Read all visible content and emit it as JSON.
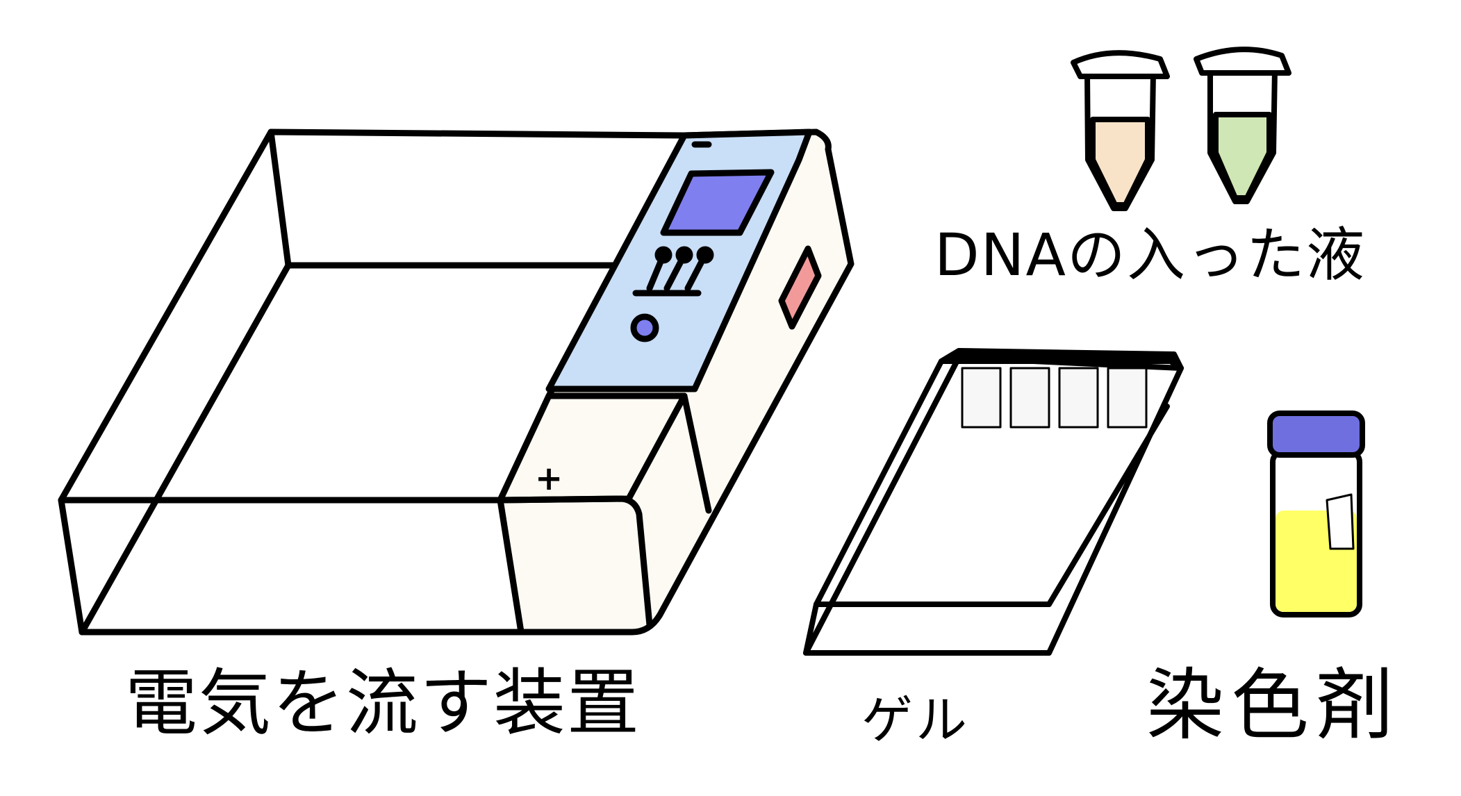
{
  "labels": {
    "device": "電気を流す装置",
    "gel": "ゲル",
    "dna_solution": "DNAの入った液",
    "stain": "染色剤"
  },
  "device": {
    "plus_sign": "+"
  },
  "colors": {
    "outline": "#000000",
    "panel": "#c9def7",
    "screen": "#7f7fef",
    "knob": "#7f7fef",
    "warning_light": "#f29a9a",
    "device_body": "#fdfaf3",
    "tube_orange_liquid": "#f8e3c8",
    "tube_green_liquid": "#cfe7b4",
    "stain_liquid": "#ffff66",
    "bottle_cap": "#6f6fdf"
  },
  "icons": [
    "gel-electrophoresis-device-icon",
    "gel-tray-icon",
    "microtube-icon",
    "stain-bottle-icon"
  ]
}
